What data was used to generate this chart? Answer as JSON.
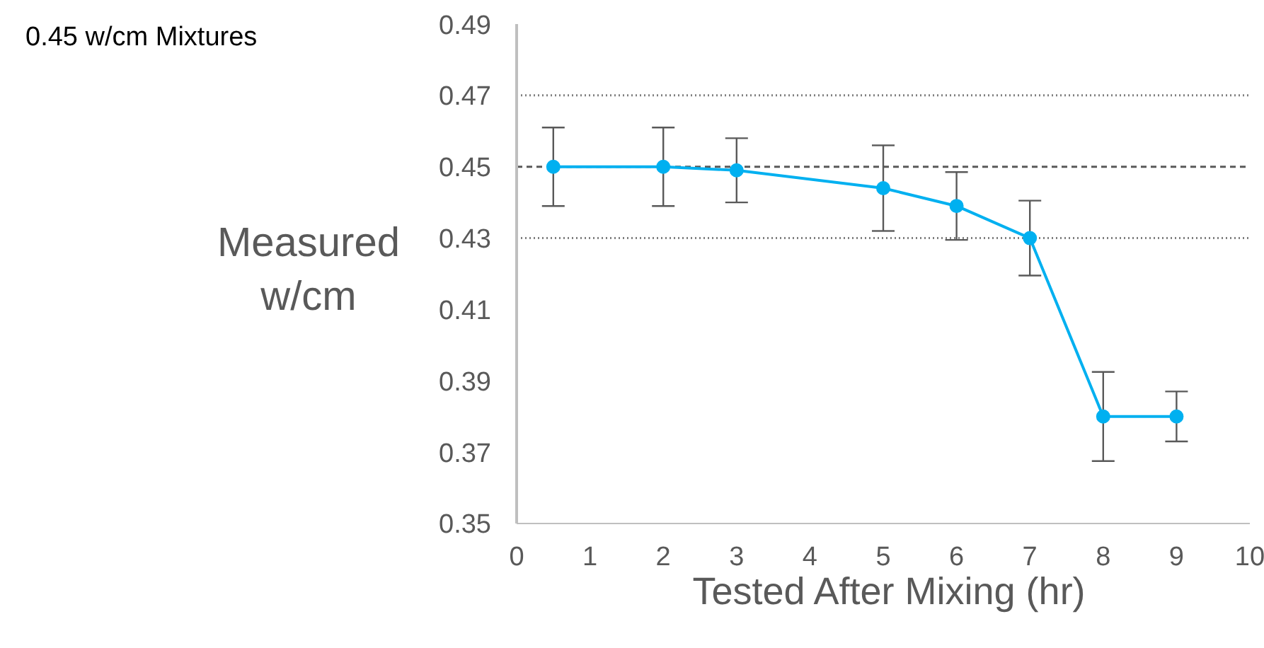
{
  "chart_data": {
    "type": "line",
    "title": "0.45 w/cm Mixtures",
    "xlabel": "Tested After Mixing (hr)",
    "ylabel": "Measured w/cm",
    "x": [
      0.5,
      2,
      3,
      5,
      6,
      7,
      8,
      9
    ],
    "series": [
      {
        "color": "#00b0f0",
        "values": [
          0.45,
          0.45,
          0.449,
          0.444,
          0.439,
          0.43,
          0.38,
          0.38
        ],
        "errors": [
          0.011,
          0.011,
          0.009,
          0.012,
          0.0095,
          0.0105,
          0.0125,
          0.007
        ]
      }
    ],
    "xlim": [
      0,
      10
    ],
    "xticks": [
      0,
      1,
      2,
      3,
      4,
      5,
      6,
      7,
      8,
      9,
      10
    ],
    "ylim": [
      0.35,
      0.49
    ],
    "yticks": [
      0.35,
      0.37,
      0.39,
      0.41,
      0.43,
      0.45,
      0.47,
      0.49
    ],
    "ref_lines": [
      {
        "axis": "y",
        "value": 0.47,
        "color": "#7f7f7f",
        "line_style": "dotted"
      },
      {
        "axis": "y",
        "value": 0.45,
        "color": "#595959",
        "line_style": "dashed"
      },
      {
        "axis": "y",
        "value": 0.43,
        "color": "#7f7f7f",
        "line_style": "dotted"
      }
    ],
    "marker": "circle",
    "line_style": "solid",
    "grid": false,
    "legend": false
  }
}
